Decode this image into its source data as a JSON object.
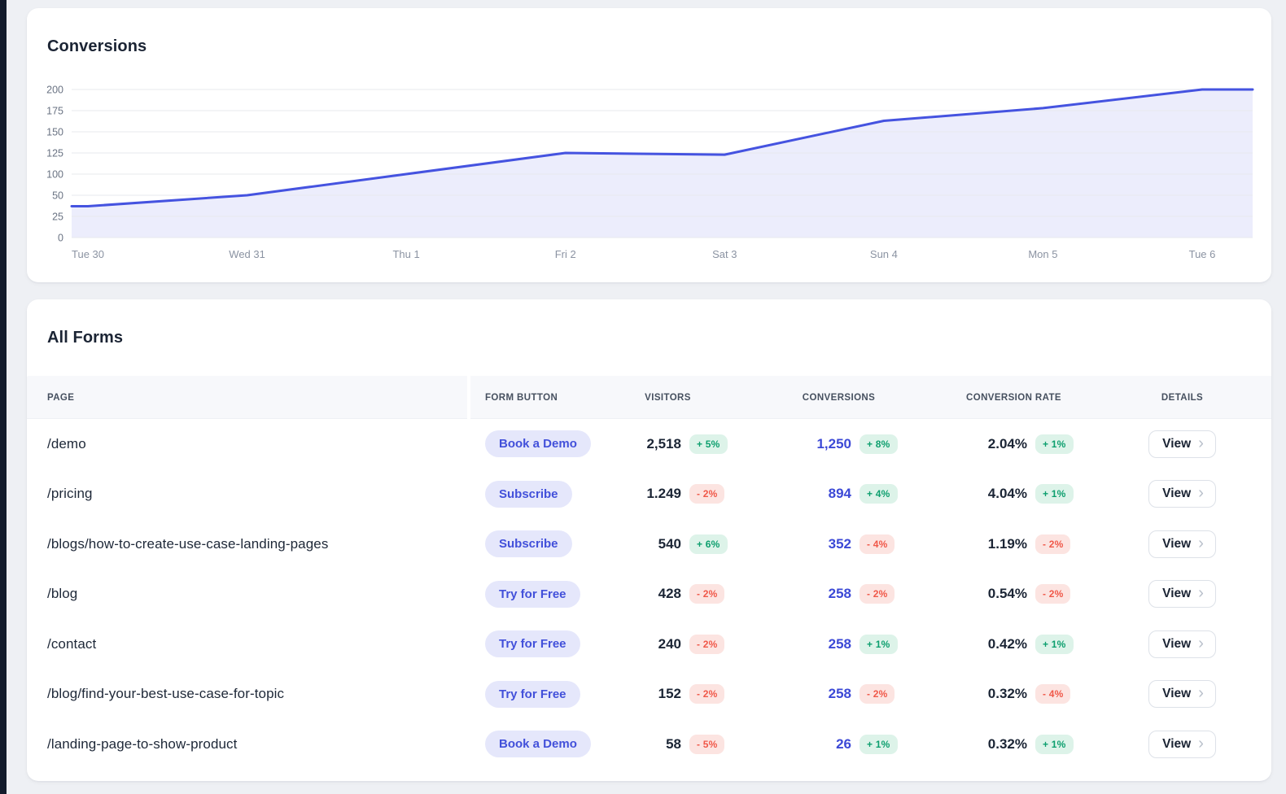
{
  "page": {
    "background": "#eef0f4",
    "left_bar_color": "#131b2c"
  },
  "conversions_card": {
    "title": "Conversions"
  },
  "chart_data": {
    "type": "area",
    "title": "Conversions",
    "x": [
      "Tue 30",
      "Wed 31",
      "Thu 1",
      "Fri 2",
      "Sat 3",
      "Sun 4",
      "Mon 5",
      "Tue 6"
    ],
    "values": [
      37,
      50,
      100,
      125,
      123,
      163,
      178,
      200
    ],
    "y_ticks": [
      0,
      25,
      50,
      100,
      125,
      150,
      175,
      200
    ],
    "ylim": [
      0,
      200
    ],
    "grid": true,
    "legend": "none",
    "line_color": "#4553e0",
    "fill_color": "rgba(69,83,224,0.10)",
    "grid_color": "#e7e9ee",
    "x_label_color": "#8b93a2",
    "y_label_color": "#6a7383"
  },
  "forms_card": {
    "title": "All Forms",
    "columns": [
      "PAGE",
      "FORM BUTTON",
      "VISITORS",
      "CONVERSIONS",
      "CONVERSION RATE",
      "DETAILS"
    ],
    "view_label": "View",
    "chevron_icon": "›",
    "colors": {
      "pill_bg": "#e5e7fb",
      "pill_text": "#4250da",
      "badge_up_bg": "#ddf3e9",
      "badge_up_text": "#0d9f6e",
      "badge_down_bg": "#fce4e1",
      "badge_down_text": "#f05849",
      "conversions_value": "#3c49d6",
      "header_bg": "#f7f8fb"
    },
    "rows": [
      {
        "page": "/demo",
        "form_button": "Book a Demo",
        "visitors": "2,518",
        "visitors_change": "+ 5%",
        "visitors_trend": "up",
        "conversions": "1,250",
        "conversions_change": "+ 8%",
        "conversions_trend": "up",
        "rate": "2.04%",
        "rate_change": "+ 1%",
        "rate_trend": "up"
      },
      {
        "page": "/pricing",
        "form_button": "Subscribe",
        "visitors": "1.249",
        "visitors_change": "- 2%",
        "visitors_trend": "down",
        "conversions": "894",
        "conversions_change": "+ 4%",
        "conversions_trend": "up",
        "rate": "4.04%",
        "rate_change": "+ 1%",
        "rate_trend": "up"
      },
      {
        "page": "/blogs/how-to-create-use-case-landing-pages",
        "form_button": "Subscribe",
        "visitors": "540",
        "visitors_change": "+ 6%",
        "visitors_trend": "up",
        "conversions": "352",
        "conversions_change": "- 4%",
        "conversions_trend": "down",
        "rate": "1.19%",
        "rate_change": "- 2%",
        "rate_trend": "down"
      },
      {
        "page": "/blog",
        "form_button": "Try for Free",
        "visitors": "428",
        "visitors_change": "- 2%",
        "visitors_trend": "down",
        "conversions": "258",
        "conversions_change": "- 2%",
        "conversions_trend": "down",
        "rate": "0.54%",
        "rate_change": "- 2%",
        "rate_trend": "down"
      },
      {
        "page": "/contact",
        "form_button": "Try for Free",
        "visitors": "240",
        "visitors_change": "- 2%",
        "visitors_trend": "down",
        "conversions": "258",
        "conversions_change": "+ 1%",
        "conversions_trend": "up",
        "rate": "0.42%",
        "rate_change": "+ 1%",
        "rate_trend": "up"
      },
      {
        "page": "/blog/find-your-best-use-case-for-topic",
        "form_button": "Try for Free",
        "visitors": "152",
        "visitors_change": "- 2%",
        "visitors_trend": "down",
        "conversions": "258",
        "conversions_change": "- 2%",
        "conversions_trend": "down",
        "rate": "0.32%",
        "rate_change": "- 4%",
        "rate_trend": "down"
      },
      {
        "page": "/landing-page-to-show-product",
        "form_button": "Book a Demo",
        "visitors": "58",
        "visitors_change": "- 5%",
        "visitors_trend": "down",
        "conversions": "26",
        "conversions_change": "+ 1%",
        "conversions_trend": "up",
        "rate": "0.32%",
        "rate_change": "+ 1%",
        "rate_trend": "up"
      }
    ]
  }
}
